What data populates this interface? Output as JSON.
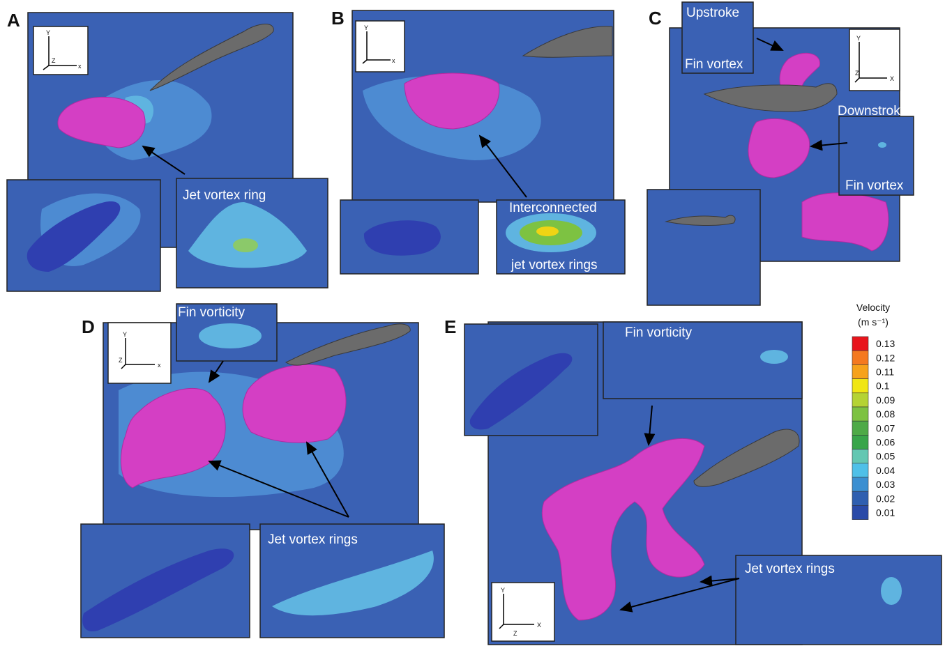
{
  "panels": [
    {
      "letter": "A",
      "axes": [
        "Y",
        "x",
        "Z"
      ],
      "labels": [
        "Jet vortex ring"
      ]
    },
    {
      "letter": "B",
      "axes": [
        "Y",
        "x"
      ],
      "labels": [
        "Interconnected",
        "jet vortex rings"
      ]
    },
    {
      "letter": "C",
      "axes": [
        "Y",
        "X",
        "Z"
      ],
      "labels": [
        "Upstroke",
        "Fin vortex",
        "Downstroke",
        "Fin vortex"
      ]
    },
    {
      "letter": "D",
      "axes": [
        "Y",
        "x",
        "Z"
      ],
      "labels": [
        "Fin vorticity",
        "Jet vortex rings"
      ]
    },
    {
      "letter": "E",
      "axes": [
        "Y",
        "X",
        "Z"
      ],
      "labels": [
        "Fin vorticity",
        "Jet vortex rings"
      ]
    }
  ],
  "legend": {
    "title": "Velocity",
    "unit": "(m s⁻¹)",
    "ticks": [
      "0.13",
      "0.12",
      "0.11",
      "0.1",
      "0.09",
      "0.08",
      "0.07",
      "0.06",
      "0.05",
      "0.04",
      "0.03",
      "0.02",
      "0.01"
    ],
    "colors": [
      "#e8141c",
      "#f47920",
      "#f6a21b",
      "#f0e614",
      "#b5d334",
      "#7dc242",
      "#4eaa47",
      "#38a54a",
      "#63c7b2",
      "#4fc0e8",
      "#3b8fd1",
      "#2f5fb0",
      "#2a4aa8"
    ]
  }
}
